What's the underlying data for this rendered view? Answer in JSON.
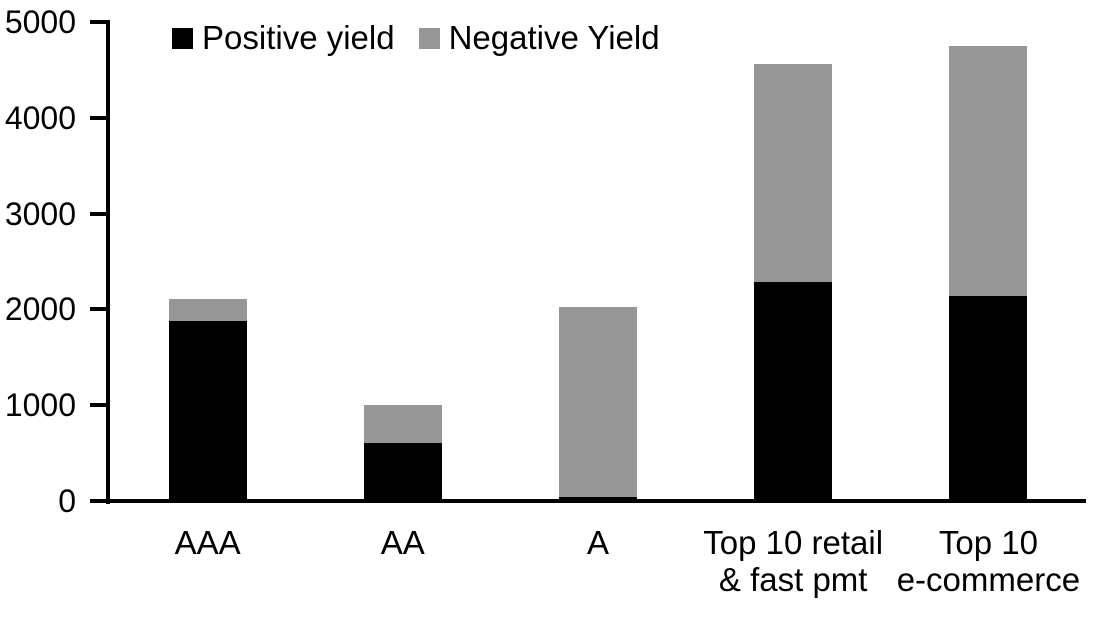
{
  "chart_data": {
    "type": "bar",
    "stacked": true,
    "title": "",
    "xlabel": "",
    "ylabel": "",
    "categories": [
      {
        "label": "AAA",
        "lines": [
          "AAA"
        ]
      },
      {
        "label": "AA",
        "lines": [
          "AA"
        ]
      },
      {
        "label": "A",
        "lines": [
          "A"
        ]
      },
      {
        "label": "Top 10 retail & fast pmt",
        "lines": [
          "Top 10 retail",
          "& fast pmt"
        ]
      },
      {
        "label": "Top 10 e-commerce",
        "lines": [
          "Top 10",
          "e-commerce"
        ]
      }
    ],
    "series": [
      {
        "name": "Positive yield",
        "color": "#000000",
        "values": [
          1880,
          610,
          40,
          2290,
          2140
        ]
      },
      {
        "name": "Negative Yield",
        "color": "#969696",
        "values": [
          230,
          390,
          1990,
          2270,
          2610
        ]
      }
    ],
    "stack_totals": [
      2110,
      1000,
      2030,
      4560,
      4750
    ],
    "ylim": [
      0,
      5000
    ],
    "y_ticks": [
      0,
      1000,
      2000,
      3000,
      4000,
      5000
    ],
    "y_tick_labels": [
      "0",
      "1000",
      "2000",
      "3000",
      "4000",
      "5000"
    ],
    "legend_position": "top",
    "grid": false,
    "axis_color": "#000000",
    "background_color": "#ffffff"
  }
}
